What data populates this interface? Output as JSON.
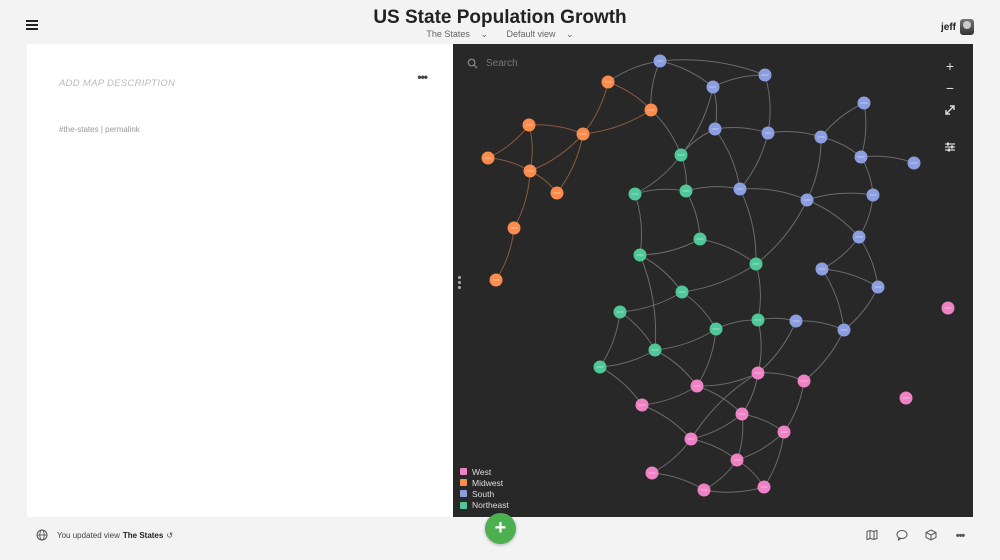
{
  "header": {
    "title": "US State Population Growth",
    "nav_project": "The States",
    "nav_view": "Default view",
    "username": "jeff"
  },
  "left_panel": {
    "description_placeholder": "ADD MAP DESCRIPTION",
    "tag": "#the-states",
    "separator": "|",
    "permalink": "permalink",
    "more_label": "•••"
  },
  "map": {
    "search_placeholder": "Search",
    "colors": {
      "background": "#282828",
      "edge": "#6b6b6b",
      "West": "#ee82c4",
      "Midwest": "#fb8c4d",
      "South": "#8c9ee0",
      "Northeast": "#4fc79a"
    },
    "legend": [
      {
        "label": "West",
        "color": "#ee82c4"
      },
      {
        "label": "Midwest",
        "color": "#fb8c4d"
      },
      {
        "label": "South",
        "color": "#8c9ee0"
      },
      {
        "label": "Northeast",
        "color": "#4fc79a"
      }
    ]
  },
  "footer": {
    "status_prefix": "You updated view",
    "status_view": "The States",
    "add_button": "+"
  }
}
